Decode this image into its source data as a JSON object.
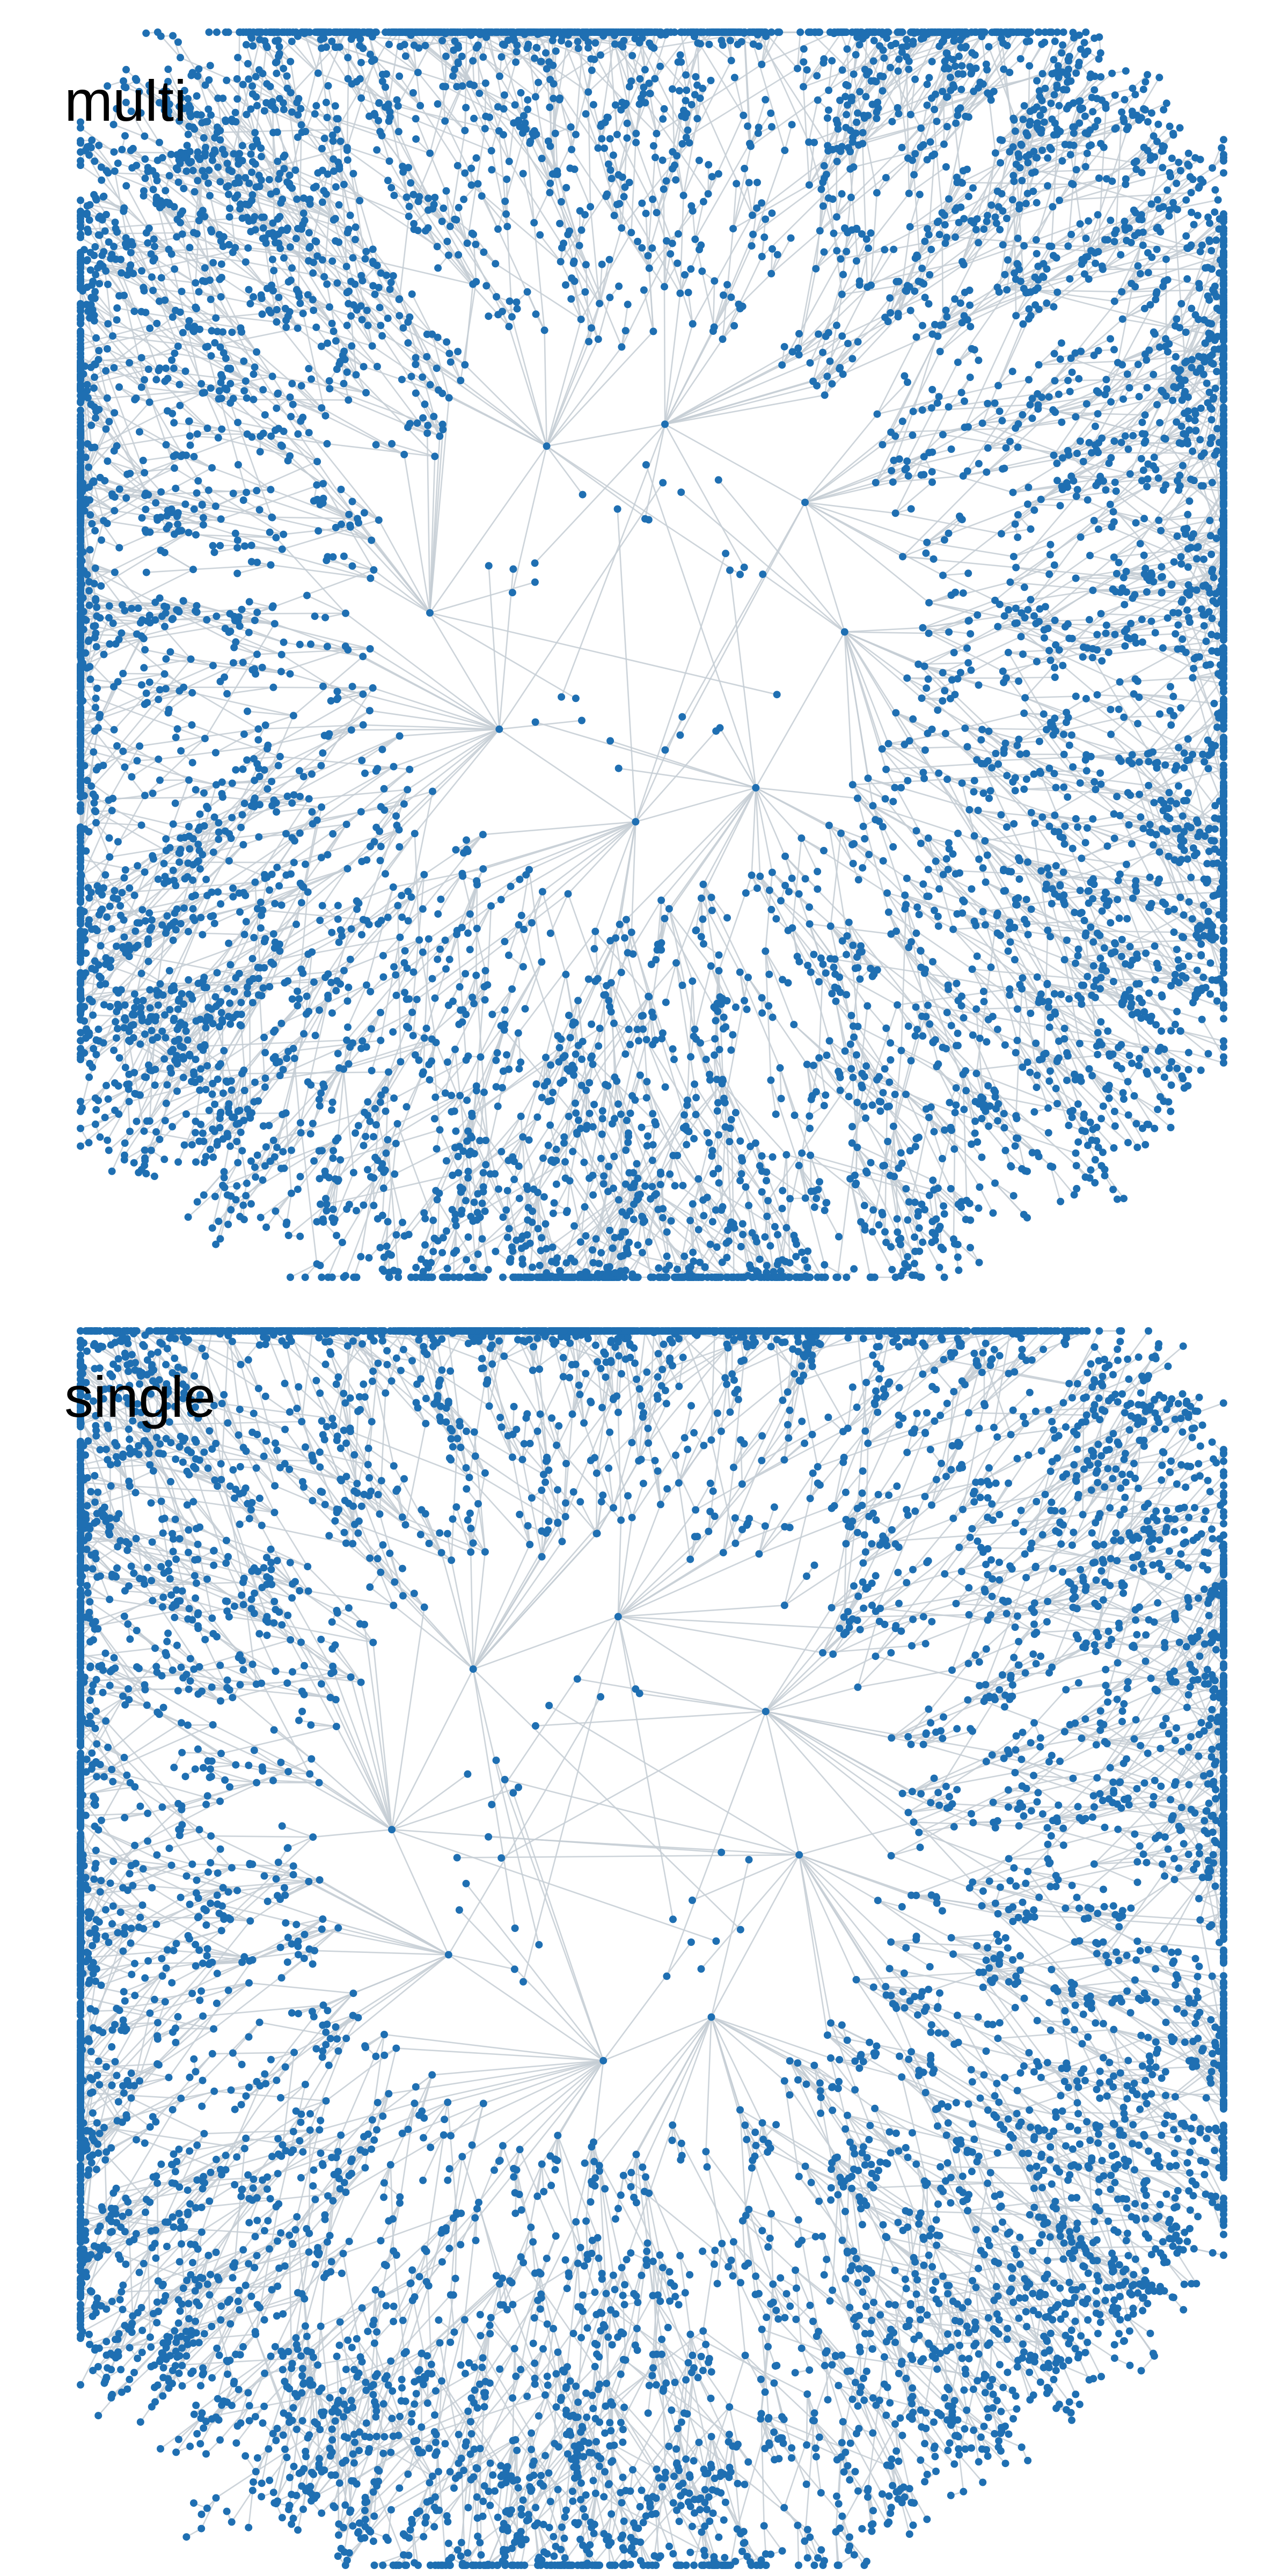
{
  "panels": [
    {
      "label": "multi",
      "network": {
        "layout": "radial-tree",
        "hubs": 8,
        "branches_per_hub": 7,
        "depth": 4,
        "seed": 7
      }
    },
    {
      "label": "single",
      "network": {
        "layout": "radial-tree",
        "hubs": 8,
        "branches_per_hub": 7,
        "depth": 4,
        "seed": 19
      }
    }
  ],
  "colors": {
    "node": "#1f6fb2",
    "edge": "#c4ccd4",
    "background": "#ffffff"
  }
}
